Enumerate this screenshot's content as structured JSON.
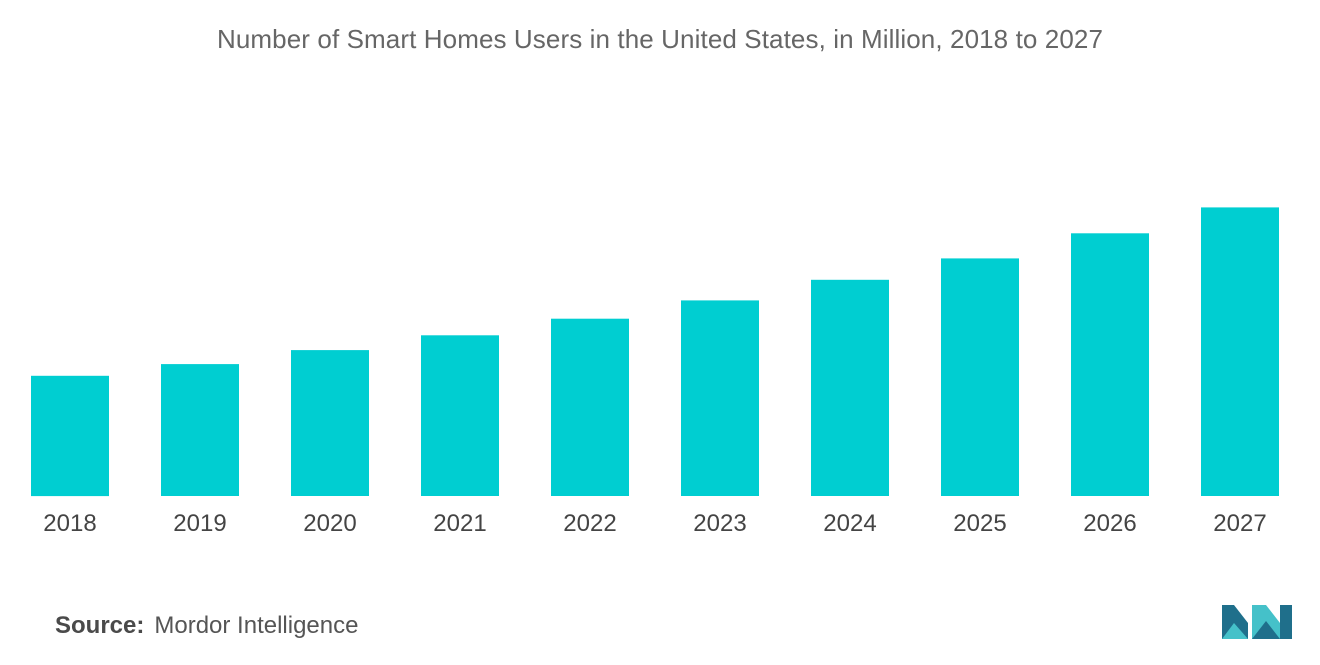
{
  "chart_data": {
    "type": "bar",
    "title": "Number of Smart Homes Users in the United States, in Million, 2018 to 2027",
    "categories": [
      "2018",
      "2019",
      "2020",
      "2021",
      "2022",
      "2023",
      "2024",
      "2025",
      "2026",
      "2027"
    ],
    "series": [
      {
        "name": "Smart Homes Users",
        "values": [
          45.5,
          49.9,
          55.2,
          60.8,
          67.1,
          74.0,
          81.8,
          89.9,
          99.4,
          109.2
        ]
      }
    ],
    "xlabel": "",
    "ylabel": "",
    "ylim": [
      0,
      140
    ],
    "grid": false,
    "legend": "none",
    "bar_color": "#00CED1"
  },
  "source": {
    "key": "Source:",
    "value": "Mordor Intelligence"
  },
  "brand": {
    "logo_icon": "mordor-intelligence-logo-icon",
    "color_dark": "#1F6F8B",
    "color_light": "#45C1C9"
  }
}
